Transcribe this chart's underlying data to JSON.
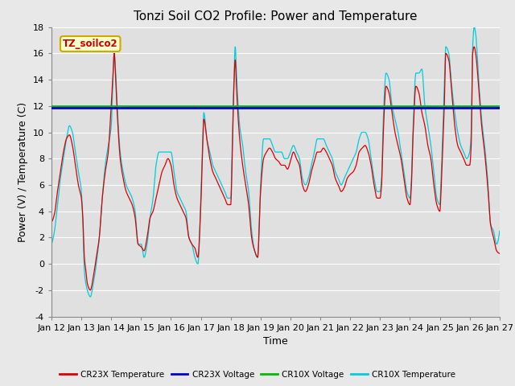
{
  "title": "Tonzi Soil CO2 Profile: Power and Temperature",
  "xlabel": "Time",
  "ylabel": "Power (V) / Temperature (C)",
  "ylim": [
    -4,
    18
  ],
  "yticks": [
    -4,
    -2,
    0,
    2,
    4,
    6,
    8,
    10,
    12,
    14,
    16,
    18
  ],
  "xtick_days": [
    12,
    13,
    14,
    15,
    16,
    17,
    18,
    19,
    20,
    21,
    22,
    23,
    24,
    25,
    26,
    27
  ],
  "xticklabels": [
    "Jan 12",
    "Jan 13",
    "Jan 14",
    "Jan 15",
    "Jan 16",
    "Jan 17",
    "Jan 18",
    "Jan 19",
    "Jan 20",
    "Jan 21",
    "Jan 22",
    "Jan 23",
    "Jan 24",
    "Jan 25",
    "Jan 26",
    "Jan 27"
  ],
  "cr23x_voltage": 11.88,
  "cr10x_voltage": 11.98,
  "fig_bg_color": "#e8e8e8",
  "plot_bg_color": "#e0e0e0",
  "grid_color": "#ffffff",
  "title_fontsize": 11,
  "label_fontsize": 9,
  "tick_fontsize": 8,
  "watermark_text": "TZ_soilco2",
  "watermark_bg": "#ffffcc",
  "watermark_edge": "#ccaa00",
  "colors": {
    "cr23x_temp": "#dd0000",
    "cr23x_volt": "#0000cc",
    "cr10x_volt": "#00bb00",
    "cr10x_temp": "#00ccdd"
  },
  "cr23x_temp_knots": {
    "x": [
      12.0,
      12.1,
      12.2,
      12.3,
      12.4,
      12.5,
      12.6,
      12.7,
      12.8,
      12.9,
      13.0,
      13.05,
      13.1,
      13.15,
      13.2,
      13.3,
      13.4,
      13.5,
      13.6,
      13.7,
      13.8,
      13.9,
      14.0,
      14.05,
      14.1,
      14.15,
      14.2,
      14.3,
      14.4,
      14.5,
      14.6,
      14.7,
      14.8,
      14.9,
      15.0,
      15.1,
      15.2,
      15.3,
      15.4,
      15.5,
      15.6,
      15.7,
      15.8,
      15.9,
      16.0,
      16.1,
      16.2,
      16.3,
      16.4,
      16.5,
      16.6,
      16.7,
      16.8,
      16.9,
      17.0,
      17.05,
      17.1,
      17.2,
      17.3,
      17.4,
      17.5,
      17.6,
      17.7,
      17.8,
      17.9,
      18.0,
      18.05,
      18.1,
      18.15,
      18.2,
      18.3,
      18.4,
      18.5,
      18.6,
      18.7,
      18.8,
      18.9,
      19.0,
      19.1,
      19.2,
      19.3,
      19.4,
      19.5,
      19.6,
      19.7,
      19.8,
      19.9,
      20.0,
      20.1,
      20.2,
      20.3,
      20.4,
      20.5,
      20.6,
      20.7,
      20.8,
      20.9,
      21.0,
      21.1,
      21.2,
      21.3,
      21.4,
      21.5,
      21.6,
      21.7,
      21.8,
      21.9,
      22.0,
      22.1,
      22.2,
      22.3,
      22.4,
      22.5,
      22.6,
      22.7,
      22.8,
      22.9,
      23.0,
      23.05,
      23.1,
      23.2,
      23.3,
      23.4,
      23.5,
      23.6,
      23.7,
      23.8,
      23.9,
      24.0,
      24.05,
      24.1,
      24.2,
      24.3,
      24.4,
      24.5,
      24.6,
      24.7,
      24.8,
      24.9,
      25.0,
      25.05,
      25.1,
      25.15,
      25.2,
      25.3,
      25.4,
      25.5,
      25.6,
      25.7,
      25.8,
      25.9,
      26.0,
      26.05,
      26.1,
      26.15,
      26.2,
      26.3,
      26.4,
      26.5,
      26.6,
      26.7,
      26.8,
      26.9,
      27.0
    ],
    "y": [
      3.2,
      3.8,
      5.5,
      7.0,
      8.5,
      9.5,
      9.8,
      9.0,
      7.5,
      6.0,
      5.0,
      3.5,
      0.5,
      -0.5,
      -1.5,
      -2.0,
      -1.0,
      0.5,
      2.0,
      5.0,
      7.0,
      8.5,
      12.1,
      14.0,
      16.0,
      14.0,
      11.5,
      8.0,
      6.5,
      5.5,
      5.0,
      4.5,
      3.5,
      1.5,
      1.3,
      1.0,
      2.0,
      3.5,
      4.0,
      5.0,
      6.0,
      7.0,
      7.5,
      8.0,
      7.5,
      6.0,
      5.0,
      4.5,
      4.0,
      3.5,
      2.0,
      1.5,
      1.2,
      0.5,
      4.5,
      8.0,
      11.0,
      9.5,
      8.0,
      7.0,
      6.5,
      6.0,
      5.5,
      5.0,
      4.5,
      4.5,
      8.0,
      13.0,
      15.5,
      13.0,
      9.5,
      7.5,
      6.0,
      4.5,
      2.0,
      1.0,
      0.5,
      5.5,
      8.0,
      8.5,
      8.8,
      8.5,
      8.0,
      7.8,
      7.5,
      7.5,
      7.2,
      7.8,
      8.5,
      8.0,
      7.5,
      6.0,
      5.5,
      6.0,
      7.0,
      7.8,
      8.5,
      8.5,
      8.8,
      8.5,
      8.0,
      7.5,
      6.5,
      6.0,
      5.5,
      5.8,
      6.5,
      6.8,
      7.0,
      7.5,
      8.5,
      8.8,
      9.0,
      8.5,
      7.5,
      6.0,
      5.0,
      5.0,
      6.0,
      9.5,
      13.5,
      13.0,
      11.5,
      10.0,
      9.0,
      8.0,
      6.5,
      5.0,
      4.5,
      6.0,
      9.5,
      13.5,
      13.0,
      11.5,
      10.5,
      9.0,
      8.0,
      6.0,
      4.5,
      4.0,
      6.0,
      9.0,
      12.0,
      16.0,
      15.5,
      13.0,
      10.5,
      9.0,
      8.5,
      8.0,
      7.5,
      7.5,
      9.0,
      16.0,
      16.5,
      16.0,
      13.5,
      10.5,
      8.5,
      6.0,
      3.0,
      2.0,
      1.0,
      0.8
    ]
  },
  "cr10x_temp_knots": {
    "x": [
      12.0,
      12.1,
      12.2,
      12.3,
      12.4,
      12.5,
      12.6,
      12.7,
      12.8,
      12.9,
      13.0,
      13.05,
      13.1,
      13.15,
      13.2,
      13.3,
      13.4,
      13.5,
      13.6,
      13.7,
      13.8,
      13.9,
      14.0,
      14.05,
      14.1,
      14.15,
      14.2,
      14.3,
      14.4,
      14.5,
      14.6,
      14.7,
      14.8,
      14.9,
      15.0,
      15.1,
      15.2,
      15.3,
      15.4,
      15.5,
      15.6,
      15.7,
      15.8,
      15.9,
      16.0,
      16.1,
      16.2,
      16.3,
      16.4,
      16.5,
      16.6,
      16.7,
      16.8,
      16.9,
      17.0,
      17.05,
      17.1,
      17.2,
      17.3,
      17.4,
      17.5,
      17.6,
      17.7,
      17.8,
      17.9,
      18.0,
      18.05,
      18.1,
      18.15,
      18.2,
      18.3,
      18.4,
      18.5,
      18.6,
      18.7,
      18.8,
      18.9,
      19.0,
      19.1,
      19.2,
      19.3,
      19.4,
      19.5,
      19.6,
      19.7,
      19.8,
      19.9,
      20.0,
      20.1,
      20.2,
      20.3,
      20.4,
      20.5,
      20.6,
      20.7,
      20.8,
      20.9,
      21.0,
      21.1,
      21.2,
      21.3,
      21.4,
      21.5,
      21.6,
      21.7,
      21.8,
      21.9,
      22.0,
      22.1,
      22.2,
      22.3,
      22.4,
      22.5,
      22.6,
      22.7,
      22.8,
      22.9,
      23.0,
      23.05,
      23.1,
      23.2,
      23.3,
      23.4,
      23.5,
      23.6,
      23.7,
      23.8,
      23.9,
      24.0,
      24.05,
      24.1,
      24.2,
      24.3,
      24.4,
      24.5,
      24.6,
      24.7,
      24.8,
      24.9,
      25.0,
      25.05,
      25.1,
      25.15,
      25.2,
      25.3,
      25.4,
      25.5,
      25.6,
      25.7,
      25.8,
      25.9,
      26.0,
      26.05,
      26.1,
      26.15,
      26.2,
      26.3,
      26.4,
      26.5,
      26.6,
      26.7,
      26.8,
      26.9,
      27.0
    ],
    "y": [
      1.5,
      2.5,
      4.5,
      6.5,
      8.0,
      9.5,
      10.5,
      10.0,
      8.5,
      7.0,
      5.5,
      3.0,
      -0.5,
      -1.5,
      -2.0,
      -2.5,
      -1.5,
      0.0,
      2.0,
      5.0,
      7.5,
      9.0,
      10.5,
      13.5,
      16.0,
      14.5,
      12.0,
      8.5,
      7.0,
      6.0,
      5.5,
      5.0,
      4.0,
      1.5,
      1.5,
      0.5,
      1.5,
      3.5,
      5.0,
      7.5,
      8.5,
      8.5,
      8.5,
      8.5,
      8.5,
      7.0,
      5.5,
      5.0,
      4.5,
      4.0,
      2.0,
      1.5,
      0.5,
      0.0,
      5.0,
      8.5,
      11.5,
      9.5,
      8.5,
      7.5,
      7.0,
      6.5,
      6.0,
      5.5,
      5.0,
      5.0,
      9.0,
      13.5,
      16.5,
      14.0,
      10.5,
      9.0,
      7.0,
      5.5,
      2.5,
      1.0,
      0.5,
      6.0,
      9.5,
      9.5,
      9.5,
      9.0,
      8.5,
      8.5,
      8.5,
      8.0,
      8.0,
      8.5,
      9.0,
      8.5,
      8.0,
      6.5,
      6.0,
      6.5,
      7.5,
      8.5,
      9.5,
      9.5,
      9.5,
      9.0,
      8.5,
      8.0,
      7.0,
      6.5,
      6.0,
      6.5,
      7.0,
      7.5,
      8.0,
      8.5,
      9.5,
      10.0,
      10.0,
      9.5,
      8.0,
      6.5,
      5.5,
      5.5,
      6.5,
      10.5,
      14.5,
      14.0,
      12.0,
      11.0,
      10.0,
      8.5,
      7.0,
      5.5,
      5.0,
      6.5,
      10.0,
      14.5,
      14.5,
      14.8,
      12.0,
      10.5,
      9.0,
      7.0,
      5.0,
      4.5,
      7.0,
      10.0,
      13.5,
      16.5,
      16.0,
      13.5,
      11.5,
      10.0,
      9.0,
      8.5,
      8.0,
      8.5,
      10.0,
      16.5,
      18.0,
      17.5,
      14.0,
      11.0,
      9.0,
      6.5,
      3.0,
      2.5,
      1.5,
      2.5
    ]
  }
}
